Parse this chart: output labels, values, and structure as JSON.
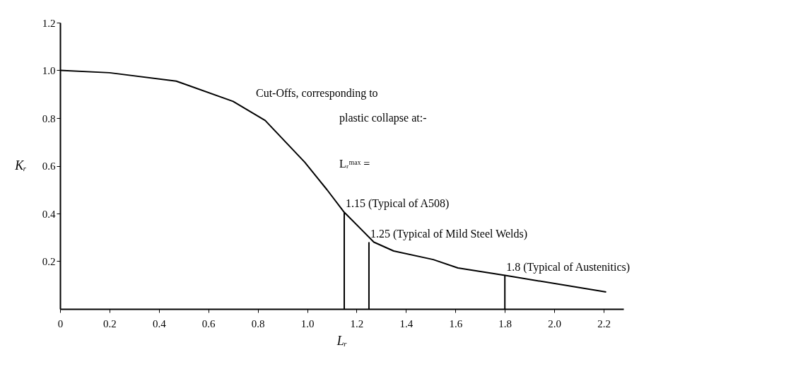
{
  "chart_data": {
    "type": "line",
    "xlabel": "Lᵣ",
    "ylabel": "Kᵣ",
    "xlim": [
      0,
      2.28
    ],
    "ylim": [
      0,
      1.2
    ],
    "xticks": [
      {
        "value": 0,
        "label": "0"
      },
      0.2,
      0.4,
      0.6,
      0.8,
      {
        "value": 1,
        "label": "1.0"
      },
      1.2,
      1.4,
      1.6,
      1.8,
      {
        "value": 2,
        "label": "2.0"
      },
      2.2
    ],
    "yticks": [
      0.2,
      0.4,
      0.6,
      0.8,
      {
        "value": 1,
        "label": "1.0"
      },
      1.2
    ],
    "grid": false,
    "marker": "none",
    "line_style": "solid",
    "series": [
      {
        "color": "#000000",
        "x": [
          0,
          0.2,
          0.47,
          0.7,
          0.83,
          0.99,
          1.08,
          1.15,
          1.27,
          1.35,
          1.51,
          1.61,
          1.81,
          2.21
        ],
        "values": [
          1.0,
          0.99,
          0.955,
          0.87,
          0.79,
          0.615,
          0.5,
          0.405,
          0.28,
          0.243,
          0.207,
          0.172,
          0.139,
          0.071
        ]
      },
      {
        "type": "bar",
        "color": "#000000",
        "x": [
          1.15,
          1.25,
          1.8
        ],
        "values": [
          0.405,
          0.28,
          0.14
        ]
      }
    ],
    "annotations": [
      "Cut-Offs, corresponding to",
      "plastic collapse at:-",
      "Lᵣᵐᵃˣ =",
      {
        "text": "1.15 (Typical of A508)",
        "x": 1.15,
        "y": 0.405
      },
      {
        "text": "1.25 (Typical of Mild Steel Welds)",
        "x": 1.25,
        "y": 0.28
      },
      {
        "text": "1.8 (Typical of Austenitics)",
        "x": 1.8,
        "y": 0.14
      }
    ]
  }
}
